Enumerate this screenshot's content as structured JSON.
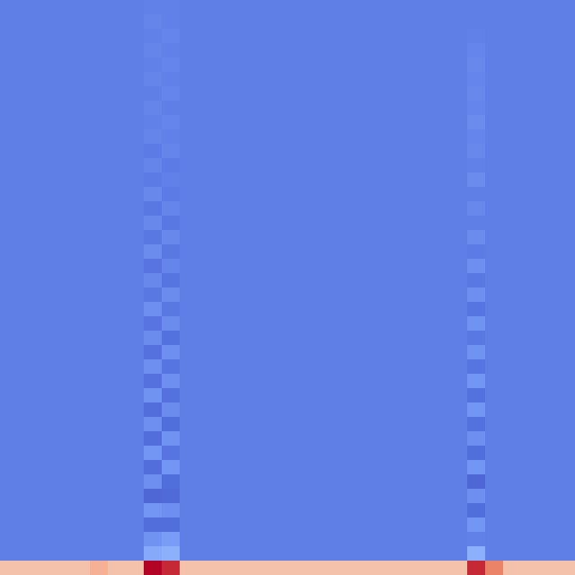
{
  "chart_data": {
    "type": "heatmap",
    "tick_labels": false,
    "zlim": [
      0,
      1
    ],
    "cells": [
      [
        0.15,
        0.15,
        0.15,
        0.15,
        0.15,
        0.15,
        0.15,
        0.15,
        0.16,
        0.16,
        0.15,
        0.15,
        0.15,
        0.15,
        0.15,
        0.15,
        0.15,
        0.15,
        0.15,
        0.15,
        0.15,
        0.15,
        0.15,
        0.15,
        0.15,
        0.15,
        0.15,
        0.15,
        0.15,
        0.15,
        0.15,
        0.15
      ],
      [
        0.15,
        0.15,
        0.15,
        0.15,
        0.15,
        0.15,
        0.15,
        0.15,
        0.17,
        0.16,
        0.15,
        0.15,
        0.15,
        0.15,
        0.15,
        0.15,
        0.15,
        0.15,
        0.15,
        0.15,
        0.15,
        0.15,
        0.15,
        0.15,
        0.15,
        0.15,
        0.15,
        0.15,
        0.15,
        0.15,
        0.15,
        0.15
      ],
      [
        0.15,
        0.15,
        0.15,
        0.15,
        0.15,
        0.15,
        0.15,
        0.15,
        0.16,
        0.17,
        0.15,
        0.15,
        0.15,
        0.15,
        0.15,
        0.15,
        0.15,
        0.15,
        0.15,
        0.15,
        0.15,
        0.15,
        0.15,
        0.15,
        0.15,
        0.15,
        0.16,
        0.15,
        0.15,
        0.15,
        0.15,
        0.15
      ],
      [
        0.15,
        0.15,
        0.15,
        0.15,
        0.15,
        0.15,
        0.15,
        0.15,
        0.17,
        0.16,
        0.15,
        0.15,
        0.15,
        0.15,
        0.15,
        0.15,
        0.15,
        0.15,
        0.15,
        0.15,
        0.15,
        0.15,
        0.15,
        0.15,
        0.15,
        0.15,
        0.17,
        0.15,
        0.15,
        0.15,
        0.15,
        0.15
      ],
      [
        0.15,
        0.15,
        0.15,
        0.15,
        0.15,
        0.15,
        0.15,
        0.15,
        0.16,
        0.17,
        0.15,
        0.15,
        0.15,
        0.15,
        0.15,
        0.15,
        0.15,
        0.15,
        0.15,
        0.15,
        0.15,
        0.15,
        0.15,
        0.15,
        0.15,
        0.15,
        0.18,
        0.15,
        0.15,
        0.15,
        0.15,
        0.15
      ],
      [
        0.15,
        0.15,
        0.15,
        0.15,
        0.15,
        0.15,
        0.15,
        0.15,
        0.17,
        0.16,
        0.15,
        0.15,
        0.15,
        0.15,
        0.15,
        0.15,
        0.15,
        0.15,
        0.15,
        0.15,
        0.15,
        0.15,
        0.15,
        0.15,
        0.15,
        0.15,
        0.17,
        0.15,
        0.15,
        0.15,
        0.15,
        0.15
      ],
      [
        0.15,
        0.15,
        0.15,
        0.15,
        0.15,
        0.15,
        0.15,
        0.15,
        0.15,
        0.17,
        0.15,
        0.15,
        0.15,
        0.15,
        0.15,
        0.15,
        0.15,
        0.15,
        0.15,
        0.15,
        0.15,
        0.15,
        0.15,
        0.15,
        0.15,
        0.15,
        0.18,
        0.15,
        0.15,
        0.15,
        0.15,
        0.15
      ],
      [
        0.15,
        0.15,
        0.15,
        0.15,
        0.15,
        0.15,
        0.15,
        0.15,
        0.17,
        0.15,
        0.15,
        0.15,
        0.15,
        0.15,
        0.15,
        0.15,
        0.15,
        0.15,
        0.15,
        0.15,
        0.15,
        0.15,
        0.15,
        0.15,
        0.15,
        0.15,
        0.17,
        0.15,
        0.15,
        0.15,
        0.15,
        0.15
      ],
      [
        0.15,
        0.15,
        0.15,
        0.15,
        0.15,
        0.15,
        0.15,
        0.15,
        0.16,
        0.17,
        0.15,
        0.15,
        0.15,
        0.15,
        0.15,
        0.15,
        0.15,
        0.15,
        0.15,
        0.15,
        0.15,
        0.15,
        0.15,
        0.15,
        0.15,
        0.15,
        0.19,
        0.15,
        0.15,
        0.15,
        0.15,
        0.15
      ],
      [
        0.15,
        0.15,
        0.15,
        0.15,
        0.15,
        0.15,
        0.15,
        0.15,
        0.17,
        0.16,
        0.15,
        0.15,
        0.15,
        0.15,
        0.15,
        0.15,
        0.15,
        0.15,
        0.15,
        0.15,
        0.15,
        0.15,
        0.15,
        0.15,
        0.15,
        0.15,
        0.17,
        0.15,
        0.15,
        0.15,
        0.15,
        0.15
      ],
      [
        0.15,
        0.15,
        0.15,
        0.15,
        0.15,
        0.15,
        0.15,
        0.15,
        0.14,
        0.17,
        0.15,
        0.15,
        0.15,
        0.15,
        0.15,
        0.15,
        0.15,
        0.15,
        0.15,
        0.15,
        0.15,
        0.15,
        0.15,
        0.15,
        0.15,
        0.15,
        0.18,
        0.15,
        0.15,
        0.15,
        0.15,
        0.15
      ],
      [
        0.15,
        0.15,
        0.15,
        0.15,
        0.15,
        0.15,
        0.15,
        0.15,
        0.17,
        0.14,
        0.15,
        0.15,
        0.15,
        0.15,
        0.15,
        0.15,
        0.15,
        0.15,
        0.15,
        0.15,
        0.15,
        0.15,
        0.15,
        0.15,
        0.15,
        0.15,
        0.16,
        0.15,
        0.15,
        0.15,
        0.15,
        0.15
      ],
      [
        0.15,
        0.15,
        0.15,
        0.15,
        0.15,
        0.15,
        0.15,
        0.15,
        0.14,
        0.16,
        0.15,
        0.15,
        0.15,
        0.15,
        0.15,
        0.15,
        0.15,
        0.15,
        0.15,
        0.15,
        0.15,
        0.15,
        0.15,
        0.15,
        0.15,
        0.15,
        0.19,
        0.15,
        0.15,
        0.15,
        0.15,
        0.15
      ],
      [
        0.15,
        0.15,
        0.15,
        0.15,
        0.15,
        0.15,
        0.15,
        0.15,
        0.18,
        0.14,
        0.15,
        0.15,
        0.15,
        0.15,
        0.15,
        0.15,
        0.15,
        0.15,
        0.15,
        0.15,
        0.15,
        0.15,
        0.15,
        0.15,
        0.15,
        0.15,
        0.15,
        0.15,
        0.15,
        0.15,
        0.15,
        0.15
      ],
      [
        0.15,
        0.15,
        0.15,
        0.15,
        0.15,
        0.15,
        0.15,
        0.15,
        0.13,
        0.17,
        0.15,
        0.15,
        0.15,
        0.15,
        0.15,
        0.15,
        0.15,
        0.15,
        0.15,
        0.15,
        0.15,
        0.15,
        0.15,
        0.15,
        0.15,
        0.15,
        0.18,
        0.15,
        0.15,
        0.15,
        0.15,
        0.15
      ],
      [
        0.15,
        0.15,
        0.15,
        0.15,
        0.15,
        0.15,
        0.15,
        0.15,
        0.18,
        0.13,
        0.15,
        0.15,
        0.15,
        0.15,
        0.15,
        0.15,
        0.15,
        0.15,
        0.15,
        0.15,
        0.15,
        0.15,
        0.15,
        0.15,
        0.15,
        0.15,
        0.15,
        0.15,
        0.15,
        0.15,
        0.15,
        0.15
      ],
      [
        0.15,
        0.15,
        0.15,
        0.15,
        0.15,
        0.15,
        0.15,
        0.15,
        0.13,
        0.18,
        0.15,
        0.15,
        0.15,
        0.15,
        0.15,
        0.15,
        0.15,
        0.15,
        0.15,
        0.15,
        0.15,
        0.15,
        0.15,
        0.15,
        0.15,
        0.15,
        0.19,
        0.15,
        0.15,
        0.15,
        0.15,
        0.15
      ],
      [
        0.15,
        0.15,
        0.15,
        0.15,
        0.15,
        0.15,
        0.15,
        0.15,
        0.19,
        0.13,
        0.15,
        0.15,
        0.15,
        0.15,
        0.15,
        0.15,
        0.15,
        0.15,
        0.15,
        0.15,
        0.15,
        0.15,
        0.15,
        0.15,
        0.15,
        0.15,
        0.14,
        0.15,
        0.15,
        0.15,
        0.15,
        0.15
      ],
      [
        0.15,
        0.15,
        0.15,
        0.15,
        0.15,
        0.15,
        0.15,
        0.15,
        0.12,
        0.17,
        0.15,
        0.15,
        0.15,
        0.15,
        0.15,
        0.15,
        0.15,
        0.15,
        0.15,
        0.15,
        0.15,
        0.15,
        0.15,
        0.15,
        0.15,
        0.15,
        0.2,
        0.15,
        0.15,
        0.15,
        0.15,
        0.15
      ],
      [
        0.15,
        0.15,
        0.15,
        0.15,
        0.15,
        0.15,
        0.15,
        0.15,
        0.18,
        0.12,
        0.15,
        0.15,
        0.15,
        0.15,
        0.15,
        0.15,
        0.15,
        0.15,
        0.15,
        0.15,
        0.15,
        0.15,
        0.15,
        0.15,
        0.15,
        0.15,
        0.13,
        0.15,
        0.15,
        0.15,
        0.15,
        0.15
      ],
      [
        0.15,
        0.15,
        0.15,
        0.15,
        0.15,
        0.15,
        0.15,
        0.15,
        0.13,
        0.19,
        0.15,
        0.15,
        0.15,
        0.15,
        0.15,
        0.15,
        0.15,
        0.15,
        0.15,
        0.15,
        0.15,
        0.15,
        0.15,
        0.15,
        0.15,
        0.15,
        0.2,
        0.15,
        0.15,
        0.15,
        0.15,
        0.15
      ],
      [
        0.15,
        0.15,
        0.15,
        0.15,
        0.15,
        0.15,
        0.15,
        0.15,
        0.2,
        0.13,
        0.15,
        0.15,
        0.15,
        0.15,
        0.15,
        0.15,
        0.15,
        0.15,
        0.15,
        0.15,
        0.15,
        0.15,
        0.15,
        0.15,
        0.15,
        0.15,
        0.12,
        0.15,
        0.15,
        0.15,
        0.15,
        0.15
      ],
      [
        0.15,
        0.15,
        0.15,
        0.15,
        0.15,
        0.15,
        0.15,
        0.15,
        0.12,
        0.19,
        0.15,
        0.15,
        0.15,
        0.15,
        0.15,
        0.15,
        0.15,
        0.15,
        0.15,
        0.15,
        0.15,
        0.15,
        0.15,
        0.15,
        0.15,
        0.15,
        0.21,
        0.15,
        0.15,
        0.15,
        0.15,
        0.15
      ],
      [
        0.15,
        0.15,
        0.15,
        0.15,
        0.15,
        0.15,
        0.15,
        0.15,
        0.19,
        0.11,
        0.15,
        0.15,
        0.15,
        0.15,
        0.15,
        0.15,
        0.15,
        0.15,
        0.15,
        0.15,
        0.15,
        0.15,
        0.15,
        0.15,
        0.15,
        0.15,
        0.13,
        0.15,
        0.15,
        0.15,
        0.15,
        0.15
      ],
      [
        0.15,
        0.15,
        0.15,
        0.15,
        0.15,
        0.15,
        0.15,
        0.15,
        0.11,
        0.2,
        0.15,
        0.15,
        0.15,
        0.15,
        0.15,
        0.15,
        0.15,
        0.15,
        0.15,
        0.15,
        0.15,
        0.15,
        0.15,
        0.15,
        0.15,
        0.15,
        0.21,
        0.15,
        0.15,
        0.15,
        0.15,
        0.15
      ],
      [
        0.15,
        0.15,
        0.15,
        0.15,
        0.15,
        0.15,
        0.15,
        0.15,
        0.2,
        0.12,
        0.15,
        0.15,
        0.15,
        0.15,
        0.15,
        0.15,
        0.15,
        0.15,
        0.15,
        0.15,
        0.15,
        0.15,
        0.15,
        0.15,
        0.15,
        0.15,
        0.12,
        0.15,
        0.15,
        0.15,
        0.15,
        0.15
      ],
      [
        0.15,
        0.15,
        0.15,
        0.15,
        0.15,
        0.15,
        0.15,
        0.15,
        0.11,
        0.2,
        0.15,
        0.15,
        0.15,
        0.15,
        0.15,
        0.15,
        0.15,
        0.15,
        0.15,
        0.15,
        0.15,
        0.15,
        0.15,
        0.15,
        0.15,
        0.15,
        0.22,
        0.15,
        0.15,
        0.15,
        0.15,
        0.15
      ],
      [
        0.15,
        0.15,
        0.15,
        0.15,
        0.15,
        0.15,
        0.15,
        0.15,
        0.21,
        0.11,
        0.15,
        0.15,
        0.15,
        0.15,
        0.15,
        0.15,
        0.15,
        0.15,
        0.15,
        0.15,
        0.15,
        0.15,
        0.15,
        0.15,
        0.15,
        0.15,
        0.11,
        0.15,
        0.15,
        0.15,
        0.15,
        0.15
      ],
      [
        0.15,
        0.15,
        0.15,
        0.15,
        0.15,
        0.15,
        0.15,
        0.15,
        0.1,
        0.19,
        0.15,
        0.15,
        0.15,
        0.15,
        0.15,
        0.15,
        0.15,
        0.15,
        0.15,
        0.15,
        0.15,
        0.15,
        0.15,
        0.15,
        0.15,
        0.15,
        0.22,
        0.15,
        0.15,
        0.15,
        0.15,
        0.15
      ],
      [
        0.15,
        0.15,
        0.15,
        0.15,
        0.15,
        0.15,
        0.15,
        0.15,
        0.2,
        0.1,
        0.15,
        0.15,
        0.15,
        0.15,
        0.15,
        0.15,
        0.15,
        0.15,
        0.15,
        0.15,
        0.15,
        0.15,
        0.15,
        0.15,
        0.15,
        0.15,
        0.11,
        0.15,
        0.15,
        0.15,
        0.15,
        0.15
      ],
      [
        0.15,
        0.15,
        0.15,
        0.15,
        0.15,
        0.15,
        0.15,
        0.15,
        0.1,
        0.21,
        0.15,
        0.15,
        0.15,
        0.15,
        0.15,
        0.15,
        0.15,
        0.15,
        0.15,
        0.15,
        0.15,
        0.15,
        0.15,
        0.15,
        0.15,
        0.15,
        0.2,
        0.15,
        0.15,
        0.15,
        0.15,
        0.15
      ],
      [
        0.15,
        0.15,
        0.15,
        0.15,
        0.15,
        0.15,
        0.15,
        0.15,
        0.22,
        0.12,
        0.15,
        0.15,
        0.15,
        0.15,
        0.15,
        0.15,
        0.15,
        0.15,
        0.15,
        0.15,
        0.15,
        0.15,
        0.15,
        0.15,
        0.15,
        0.15,
        0.1,
        0.15,
        0.15,
        0.15,
        0.15,
        0.15
      ],
      [
        0.15,
        0.15,
        0.15,
        0.15,
        0.15,
        0.15,
        0.15,
        0.15,
        0.1,
        0.22,
        0.15,
        0.15,
        0.15,
        0.15,
        0.15,
        0.15,
        0.15,
        0.15,
        0.15,
        0.15,
        0.15,
        0.15,
        0.15,
        0.15,
        0.15,
        0.15,
        0.22,
        0.15,
        0.15,
        0.15,
        0.15,
        0.15
      ],
      [
        0.15,
        0.15,
        0.15,
        0.15,
        0.15,
        0.15,
        0.15,
        0.15,
        0.2,
        0.1,
        0.15,
        0.15,
        0.15,
        0.15,
        0.15,
        0.15,
        0.15,
        0.15,
        0.15,
        0.15,
        0.15,
        0.15,
        0.15,
        0.15,
        0.15,
        0.15,
        0.08,
        0.15,
        0.15,
        0.15,
        0.15,
        0.15
      ],
      [
        0.15,
        0.15,
        0.15,
        0.15,
        0.15,
        0.15,
        0.15,
        0.15,
        0.08,
        0.09,
        0.15,
        0.15,
        0.15,
        0.15,
        0.15,
        0.15,
        0.15,
        0.15,
        0.15,
        0.15,
        0.15,
        0.15,
        0.15,
        0.15,
        0.15,
        0.15,
        0.2,
        0.15,
        0.15,
        0.15,
        0.15,
        0.15
      ],
      [
        0.15,
        0.15,
        0.15,
        0.15,
        0.15,
        0.15,
        0.15,
        0.15,
        0.22,
        0.2,
        0.15,
        0.15,
        0.15,
        0.15,
        0.15,
        0.15,
        0.15,
        0.15,
        0.15,
        0.15,
        0.15,
        0.15,
        0.15,
        0.15,
        0.15,
        0.15,
        0.1,
        0.15,
        0.15,
        0.15,
        0.15,
        0.15
      ],
      [
        0.15,
        0.15,
        0.15,
        0.15,
        0.15,
        0.15,
        0.15,
        0.15,
        0.1,
        0.1,
        0.15,
        0.15,
        0.15,
        0.15,
        0.15,
        0.15,
        0.15,
        0.15,
        0.15,
        0.15,
        0.15,
        0.15,
        0.15,
        0.15,
        0.15,
        0.15,
        0.22,
        0.15,
        0.15,
        0.15,
        0.15,
        0.15
      ],
      [
        0.15,
        0.15,
        0.15,
        0.15,
        0.15,
        0.15,
        0.15,
        0.15,
        0.21,
        0.24,
        0.15,
        0.15,
        0.15,
        0.15,
        0.15,
        0.15,
        0.15,
        0.15,
        0.15,
        0.15,
        0.15,
        0.15,
        0.15,
        0.15,
        0.15,
        0.15,
        0.16,
        0.15,
        0.15,
        0.15,
        0.15,
        0.15
      ],
      [
        0.15,
        0.15,
        0.15,
        0.15,
        0.15,
        0.15,
        0.15,
        0.15,
        0.28,
        0.3,
        0.15,
        0.15,
        0.15,
        0.15,
        0.15,
        0.15,
        0.15,
        0.15,
        0.15,
        0.15,
        0.15,
        0.15,
        0.15,
        0.15,
        0.15,
        0.15,
        0.3,
        0.15,
        0.15,
        0.15,
        0.15,
        0.15
      ],
      [
        0.62,
        0.62,
        0.62,
        0.62,
        0.62,
        0.68,
        0.62,
        0.62,
        1.0,
        0.95,
        0.62,
        0.62,
        0.62,
        0.62,
        0.62,
        0.62,
        0.62,
        0.62,
        0.62,
        0.62,
        0.62,
        0.62,
        0.62,
        0.62,
        0.62,
        0.62,
        0.95,
        0.8,
        0.62,
        0.62,
        0.62,
        0.62
      ]
    ]
  }
}
